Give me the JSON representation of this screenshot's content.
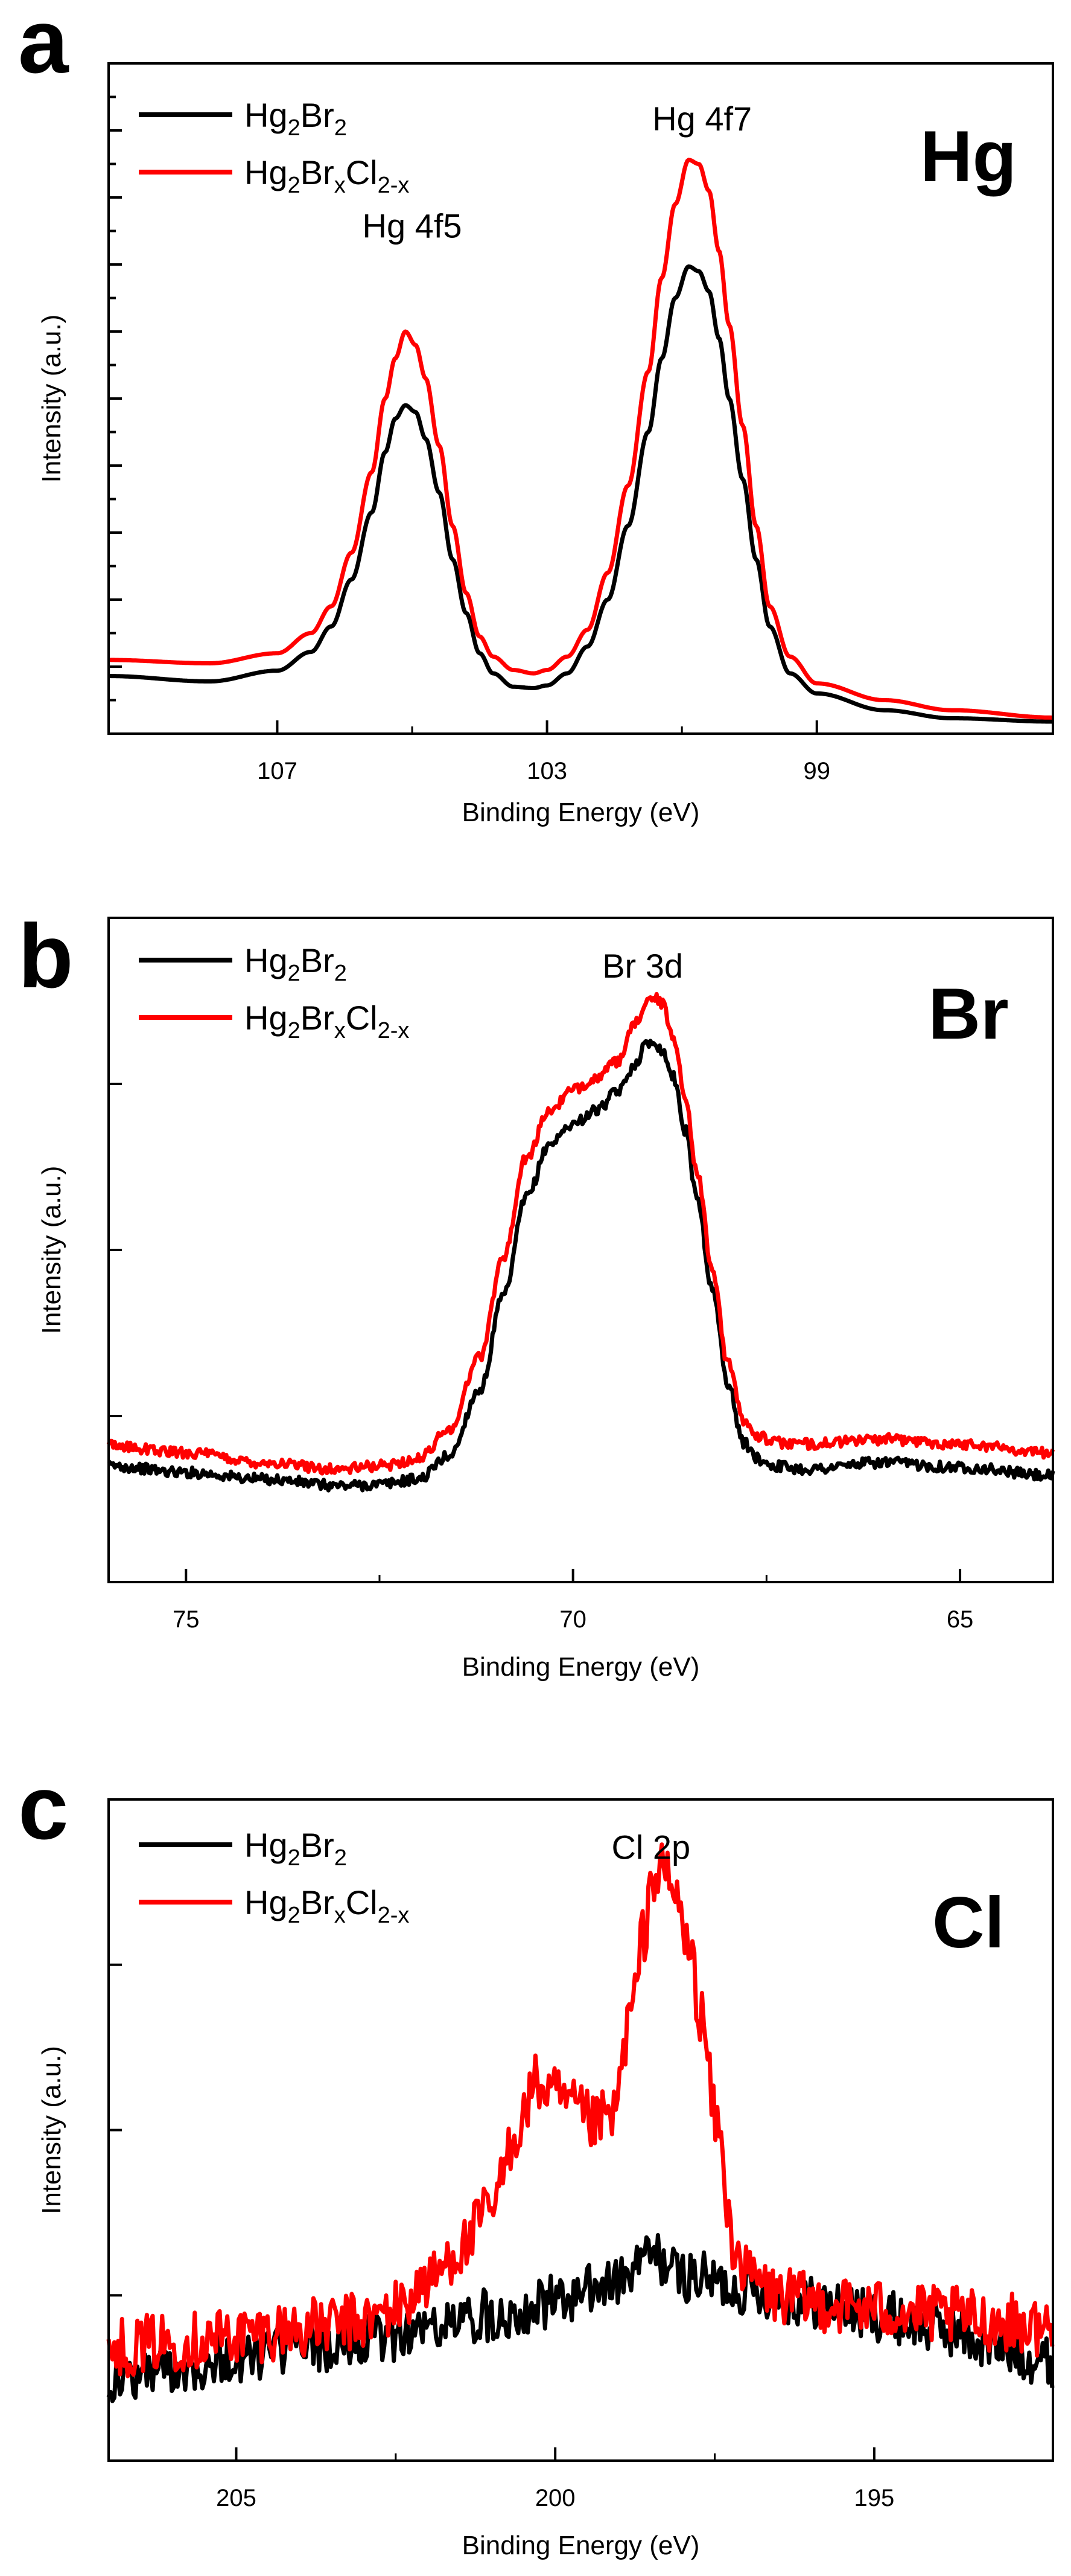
{
  "figure": {
    "colors": {
      "black": "#000000",
      "red": "#ff0000"
    }
  },
  "chart_data": [
    {
      "type": "line",
      "panel": "a",
      "element_label": "Hg",
      "xlabel": "Binding Energy (eV)",
      "ylabel": "Intensity (a.u.)",
      "xlim": [
        109.5,
        95.5
      ],
      "ylim": [
        0,
        100
      ],
      "x_reversed": true,
      "xticks": [
        107,
        103,
        99
      ],
      "yticks_minor": 20,
      "annotations": [
        {
          "text": "Hg 4f5",
          "x": 105.0,
          "y": 74
        },
        {
          "text": "Hg 4f7",
          "x": 100.7,
          "y": 90
        }
      ],
      "series": [
        {
          "name": "Hg2Br2",
          "legend": {
            "base": "Hg",
            "parts": [
              [
                "2",
                "sub"
              ],
              [
                "Br",
                ""
              ],
              [
                "2",
                "sub"
              ]
            ]
          },
          "color": "#000000",
          "x": [
            109.5,
            108.0,
            107.0,
            106.5,
            106.2,
            105.9,
            105.6,
            105.4,
            105.25,
            105.1,
            104.95,
            104.8,
            104.6,
            104.4,
            104.2,
            104.0,
            103.8,
            103.5,
            103.2,
            103.0,
            102.7,
            102.4,
            102.1,
            101.8,
            101.5,
            101.3,
            101.1,
            100.9,
            100.75,
            100.6,
            100.45,
            100.3,
            100.1,
            99.9,
            99.7,
            99.4,
            99.0,
            98.0,
            97.0,
            95.5
          ],
          "y": [
            8.6,
            7.8,
            9.4,
            12.2,
            16,
            23,
            33,
            42,
            47,
            49,
            48,
            44,
            36,
            26,
            18,
            12,
            9,
            7,
            6.8,
            7.2,
            9,
            13,
            20,
            31,
            45,
            56,
            65,
            69.7,
            69,
            66,
            59,
            50,
            38,
            26,
            16,
            9,
            6,
            3.5,
            2.3,
            1.8
          ]
        },
        {
          "name": "Hg2BrxCl2-x",
          "legend": {
            "base": "Hg",
            "parts": [
              [
                "2",
                "sub"
              ],
              [
                "Br",
                ""
              ],
              [
                "x",
                "sub"
              ],
              [
                "Cl",
                ""
              ],
              [
                "2-x",
                "sub"
              ]
            ]
          },
          "color": "#ff0000",
          "x": [
            109.5,
            108.0,
            107.0,
            106.5,
            106.2,
            105.9,
            105.6,
            105.4,
            105.25,
            105.1,
            104.95,
            104.8,
            104.6,
            104.4,
            104.2,
            104.0,
            103.8,
            103.5,
            103.2,
            103.0,
            102.7,
            102.4,
            102.1,
            101.8,
            101.5,
            101.3,
            101.1,
            100.9,
            100.75,
            100.6,
            100.45,
            100.3,
            100.1,
            99.9,
            99.7,
            99.4,
            99.0,
            98.0,
            97.0,
            95.5
          ],
          "y": [
            11,
            10.5,
            12,
            15,
            19,
            27,
            39,
            50,
            56,
            60,
            58,
            53,
            43,
            31,
            21,
            14.5,
            11.5,
            9.5,
            9,
            9.5,
            11.5,
            15.5,
            24,
            37,
            54,
            68,
            79,
            85.6,
            85,
            81,
            72,
            61,
            46,
            31,
            19,
            11.5,
            7.5,
            5,
            3.5,
            2.4
          ]
        }
      ]
    },
    {
      "type": "line",
      "panel": "b",
      "element_label": "Br",
      "xlabel": "Binding Energy (eV)",
      "ylabel": "Intensity (a.u.)",
      "xlim": [
        76.0,
        63.8
      ],
      "ylim": [
        0,
        100
      ],
      "x_reversed": true,
      "xticks": [
        75,
        70,
        65
      ],
      "yticks_minor": 4,
      "annotations": [
        {
          "text": "Br 3d",
          "x": 69.1,
          "y": 91
        }
      ],
      "series": [
        {
          "name": "Hg2Br2",
          "legend": {
            "base": "Hg",
            "parts": [
              [
                "2",
                "sub"
              ],
              [
                "Br",
                ""
              ],
              [
                "2",
                "sub"
              ]
            ]
          },
          "color": "#000000",
          "x": [
            76.0,
            75.0,
            74.0,
            73.0,
            72.5,
            72.0,
            71.6,
            71.2,
            70.9,
            70.6,
            70.3,
            70.0,
            69.7,
            69.4,
            69.2,
            69.05,
            68.95,
            68.85,
            68.7,
            68.55,
            68.4,
            68.2,
            68.0,
            67.8,
            67.6,
            67.4,
            67.0,
            66.0,
            65.0,
            63.8
          ],
          "y": [
            17.5,
            16.5,
            15.5,
            14.5,
            14.7,
            15.5,
            19,
            29,
            43,
            58,
            66,
            69,
            71,
            74,
            78,
            81,
            81.5,
            80,
            76,
            68,
            58,
            44,
            30,
            21,
            18.5,
            17.5,
            17,
            18,
            17.3,
            16
          ]
        },
        {
          "name": "Hg2BrxCl2-x",
          "legend": {
            "base": "Hg",
            "parts": [
              [
                "2",
                "sub"
              ],
              [
                "Br",
                ""
              ],
              [
                "x",
                "sub"
              ],
              [
                "Cl",
                ""
              ],
              [
                "2-x",
                "sub"
              ]
            ]
          },
          "color": "#ff0000",
          "x": [
            76.0,
            75.0,
            74.0,
            73.0,
            72.5,
            72.0,
            71.6,
            71.2,
            70.9,
            70.6,
            70.3,
            70.0,
            69.7,
            69.4,
            69.2,
            69.05,
            68.95,
            68.85,
            68.7,
            68.55,
            68.4,
            68.2,
            68.0,
            67.8,
            67.6,
            67.4,
            67.0,
            66.0,
            65.0,
            63.8
          ],
          "y": [
            20.5,
            19.5,
            18,
            17,
            17.5,
            18.5,
            23,
            34,
            49,
            64,
            71,
            74,
            76,
            78.5,
            84,
            87.5,
            88,
            87,
            82,
            73,
            62,
            47,
            33,
            24.5,
            22,
            21,
            20.8,
            21.5,
            20.8,
            19.5
          ]
        }
      ]
    },
    {
      "type": "line",
      "panel": "c",
      "element_label": "Cl",
      "xlabel": "Binding Energy (eV)",
      "ylabel": "Intensity (a.u.)",
      "xlim": [
        207.0,
        192.2
      ],
      "ylim": [
        0,
        100
      ],
      "x_reversed": true,
      "xticks": [
        205,
        200,
        195
      ],
      "yticks_minor": 4,
      "annotations": [
        {
          "text": "Cl 2p",
          "x": 198.5,
          "y": 91
        }
      ],
      "series": [
        {
          "name": "Hg2Br2",
          "legend": {
            "base": "Hg",
            "parts": [
              [
                "2",
                "sub"
              ],
              [
                "Br",
                ""
              ],
              [
                "2",
                "sub"
              ]
            ]
          },
          "color": "#000000",
          "x": [
            207.0,
            206.0,
            205.0,
            204.0,
            203.0,
            202.0,
            201.0,
            200.0,
            199.0,
            198.5,
            198.0,
            197.0,
            196.0,
            195.0,
            194.0,
            193.0,
            192.2
          ],
          "y": [
            12,
            14,
            15.5,
            17,
            18,
            20,
            22,
            24,
            27,
            31,
            28,
            26,
            24,
            22,
            20,
            17,
            15
          ]
        },
        {
          "name": "Hg2BrxCl2-x",
          "legend": {
            "base": "Hg",
            "parts": [
              [
                "2",
                "sub"
              ],
              [
                "Br",
                ""
              ],
              [
                "x",
                "sub"
              ],
              [
                "Cl",
                ""
              ],
              [
                "2-x",
                "sub"
              ]
            ]
          },
          "color": "#ff0000",
          "x": [
            207.0,
            206.0,
            205.0,
            204.0,
            203.0,
            202.5,
            202.0,
            201.5,
            201.0,
            200.6,
            200.3,
            200.0,
            199.7,
            199.4,
            199.1,
            198.8,
            198.6,
            198.5,
            198.3,
            198.1,
            197.9,
            197.7,
            197.5,
            197.2,
            197.0,
            196.5,
            196.0,
            195.0,
            194.0,
            193.0,
            192.2
          ],
          "y": [
            17,
            18,
            19,
            20,
            21,
            23,
            27,
            32,
            38,
            50,
            57,
            55,
            53,
            51,
            52,
            68,
            80,
            88,
            89,
            85,
            77,
            67,
            52,
            33,
            28,
            25,
            24,
            23,
            22,
            21,
            20
          ]
        }
      ]
    }
  ]
}
